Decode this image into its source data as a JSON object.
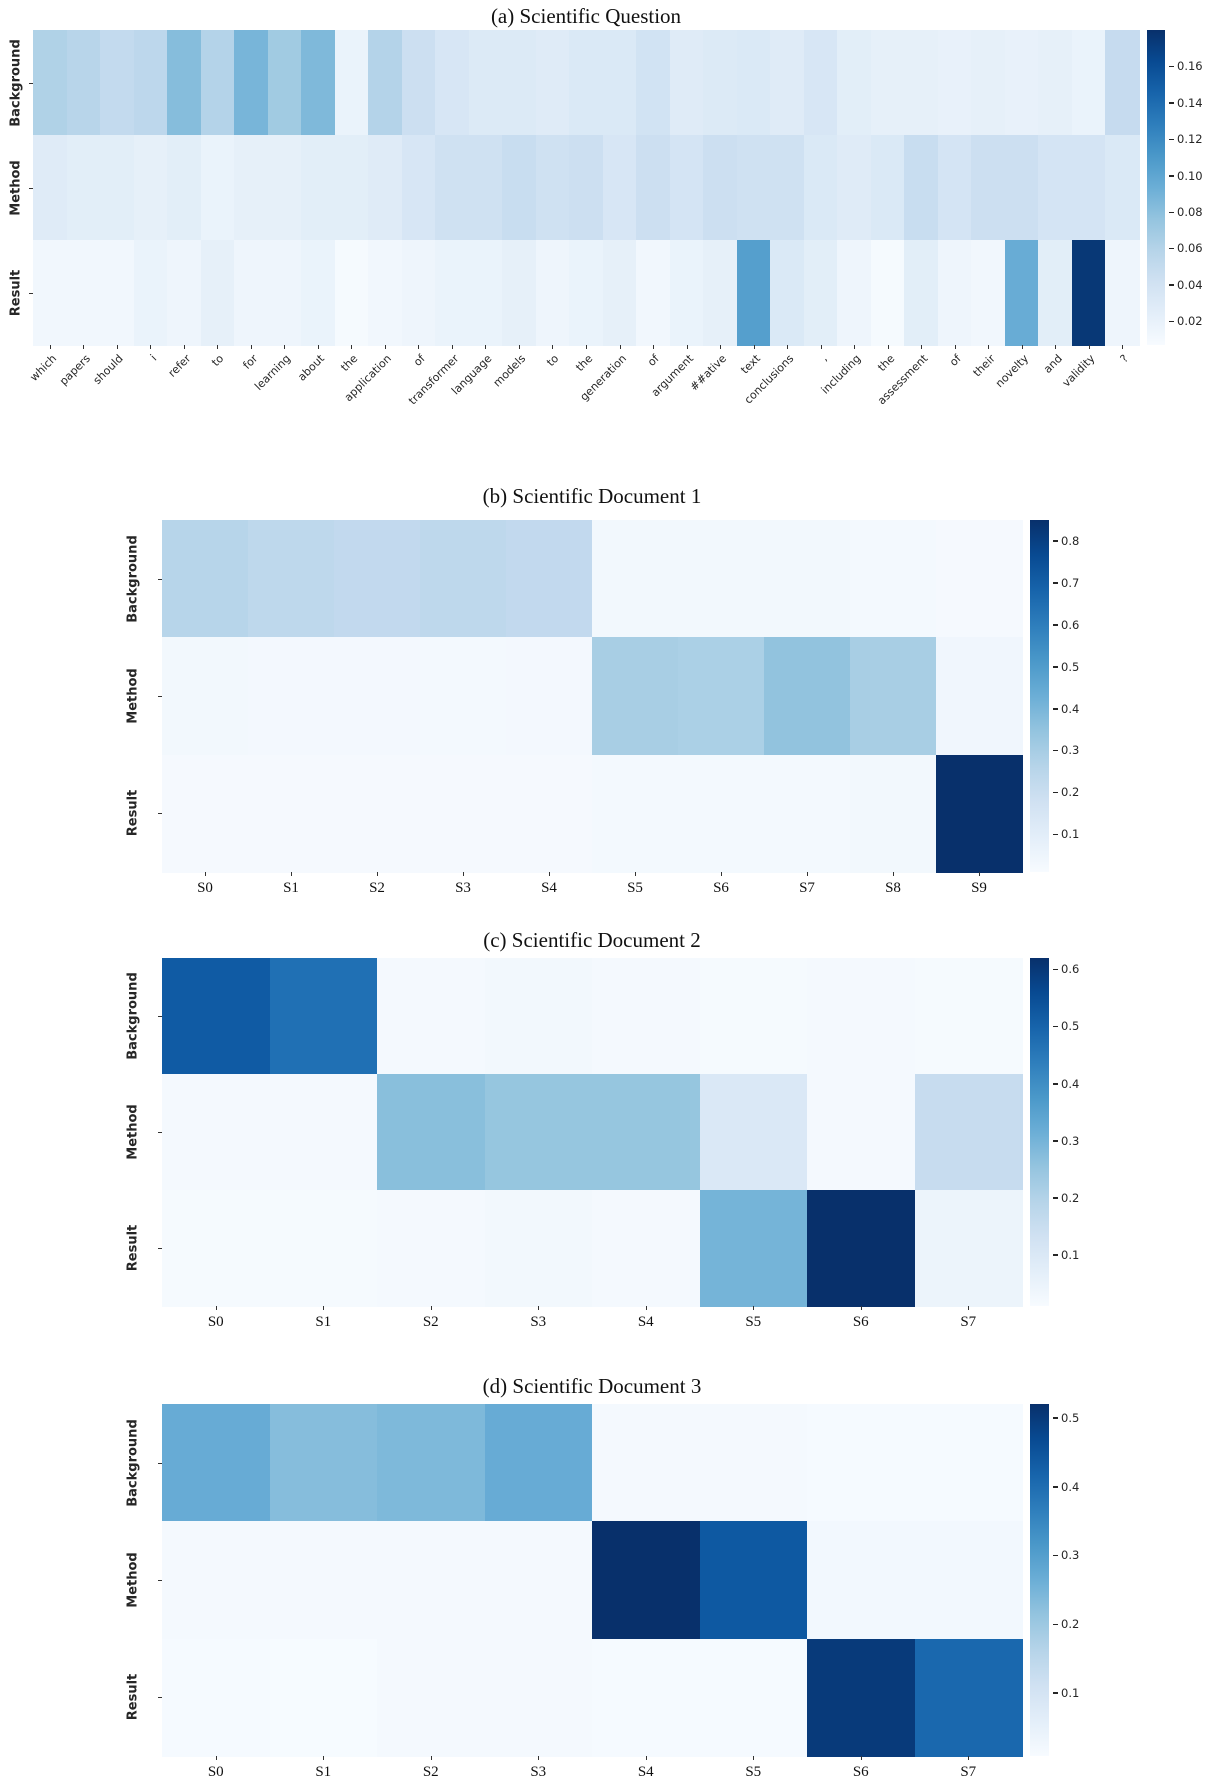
{
  "chart_data": [
    {
      "type": "heatmap",
      "panel": "a",
      "title": "(a) Scientific Question",
      "y_labels": [
        "Background",
        "Method",
        "Result"
      ],
      "x_labels": [
        "which",
        "papers",
        "should",
        "i",
        "refer",
        "to",
        "for",
        "learning",
        "about",
        "the",
        "application",
        "of",
        "transformer",
        "language",
        "models",
        "to",
        "the",
        "generation",
        "of",
        "argument",
        "##ative",
        "text",
        "conclusions",
        ",",
        "including",
        "the",
        "assessment",
        "of",
        "their",
        "novelty",
        "and",
        "validity",
        "?"
      ],
      "series": [
        {
          "name": "Background",
          "values": [
            0.062,
            0.058,
            0.052,
            0.055,
            0.082,
            0.06,
            0.088,
            0.07,
            0.085,
            0.018,
            0.06,
            0.045,
            0.035,
            0.03,
            0.03,
            0.028,
            0.032,
            0.032,
            0.04,
            0.028,
            0.03,
            0.032,
            0.028,
            0.035,
            0.025,
            0.022,
            0.022,
            0.02,
            0.022,
            0.02,
            0.022,
            0.018,
            0.05
          ]
        },
        {
          "name": "Method",
          "values": [
            0.028,
            0.025,
            0.025,
            0.022,
            0.025,
            0.018,
            0.022,
            0.022,
            0.025,
            0.025,
            0.028,
            0.035,
            0.042,
            0.042,
            0.048,
            0.042,
            0.045,
            0.035,
            0.045,
            0.038,
            0.045,
            0.042,
            0.042,
            0.032,
            0.028,
            0.032,
            0.048,
            0.038,
            0.045,
            0.045,
            0.038,
            0.038,
            0.032
          ]
        },
        {
          "name": "Result",
          "values": [
            0.012,
            0.012,
            0.012,
            0.018,
            0.015,
            0.022,
            0.015,
            0.015,
            0.018,
            0.009,
            0.012,
            0.015,
            0.018,
            0.018,
            0.022,
            0.015,
            0.018,
            0.022,
            0.012,
            0.018,
            0.022,
            0.105,
            0.032,
            0.025,
            0.015,
            0.009,
            0.025,
            0.015,
            0.012,
            0.095,
            0.025,
            0.175,
            0.015
          ]
        }
      ],
      "colormap": "Blues",
      "vmin": 0.007,
      "vmax": 0.18,
      "colorbar_ticks": [
        "0.16",
        "0.14",
        "0.12",
        "0.10",
        "0.08",
        "0.06",
        "0.04",
        "0.02"
      ],
      "colorbar_position": "right",
      "grid": false,
      "x_tick_rotation": 45
    },
    {
      "type": "heatmap",
      "panel": "b",
      "title": "(b) Scientific Document 1",
      "y_labels": [
        "Background",
        "Method",
        "Result"
      ],
      "x_labels": [
        "S0",
        "S1",
        "S2",
        "S3",
        "S4",
        "S5",
        "S6",
        "S7",
        "S8",
        "S9"
      ],
      "series": [
        {
          "name": "Background",
          "values": [
            0.26,
            0.24,
            0.23,
            0.24,
            0.23,
            0.03,
            0.03,
            0.03,
            0.025,
            0.02
          ]
        },
        {
          "name": "Method",
          "values": [
            0.03,
            0.028,
            0.028,
            0.025,
            0.028,
            0.3,
            0.29,
            0.35,
            0.3,
            0.04
          ]
        },
        {
          "name": "Result",
          "values": [
            0.02,
            0.02,
            0.02,
            0.02,
            0.02,
            0.025,
            0.025,
            0.025,
            0.03,
            0.85
          ]
        }
      ],
      "colormap": "Blues",
      "vmin": 0.01,
      "vmax": 0.85,
      "colorbar_ticks": [
        "0.8",
        "0.7",
        "0.6",
        "0.5",
        "0.4",
        "0.3",
        "0.2",
        "0.1"
      ],
      "colorbar_position": "right",
      "grid": false,
      "x_tick_rotation": 0
    },
    {
      "type": "heatmap",
      "panel": "c",
      "title": "(c) Scientific Document 2",
      "y_labels": [
        "Background",
        "Method",
        "Result"
      ],
      "x_labels": [
        "S0",
        "S1",
        "S2",
        "S3",
        "S4",
        "S5",
        "S6",
        "S7"
      ],
      "series": [
        {
          "name": "Background",
          "values": [
            0.52,
            0.47,
            0.02,
            0.025,
            0.02,
            0.015,
            0.02,
            0.015
          ]
        },
        {
          "name": "Method",
          "values": [
            0.02,
            0.02,
            0.27,
            0.25,
            0.25,
            0.1,
            0.02,
            0.16
          ]
        },
        {
          "name": "Result",
          "values": [
            0.015,
            0.015,
            0.02,
            0.025,
            0.02,
            0.3,
            0.62,
            0.045
          ]
        }
      ],
      "colormap": "Blues",
      "vmin": 0.01,
      "vmax": 0.62,
      "colorbar_ticks": [
        "0.6",
        "0.5",
        "0.4",
        "0.3",
        "0.2",
        "0.1"
      ],
      "colorbar_position": "right",
      "grid": false,
      "x_tick_rotation": 0
    },
    {
      "type": "heatmap",
      "panel": "d",
      "title": "(d) Scientific Document 3",
      "y_labels": [
        "Background",
        "Method",
        "Result"
      ],
      "x_labels": [
        "S0",
        "S1",
        "S2",
        "S3",
        "S4",
        "S5",
        "S6",
        "S7"
      ],
      "series": [
        {
          "name": "Background",
          "values": [
            0.27,
            0.23,
            0.24,
            0.27,
            0.015,
            0.015,
            0.012,
            0.012
          ]
        },
        {
          "name": "Method",
          "values": [
            0.015,
            0.015,
            0.015,
            0.015,
            0.52,
            0.44,
            0.02,
            0.02
          ]
        },
        {
          "name": "Result",
          "values": [
            0.012,
            0.01,
            0.015,
            0.015,
            0.012,
            0.012,
            0.5,
            0.41
          ]
        }
      ],
      "colormap": "Blues",
      "vmin": 0.008,
      "vmax": 0.52,
      "colorbar_ticks": [
        "0.5",
        "0.4",
        "0.3",
        "0.2",
        "0.1"
      ],
      "colorbar_position": "right",
      "grid": false,
      "x_tick_rotation": 0
    }
  ]
}
